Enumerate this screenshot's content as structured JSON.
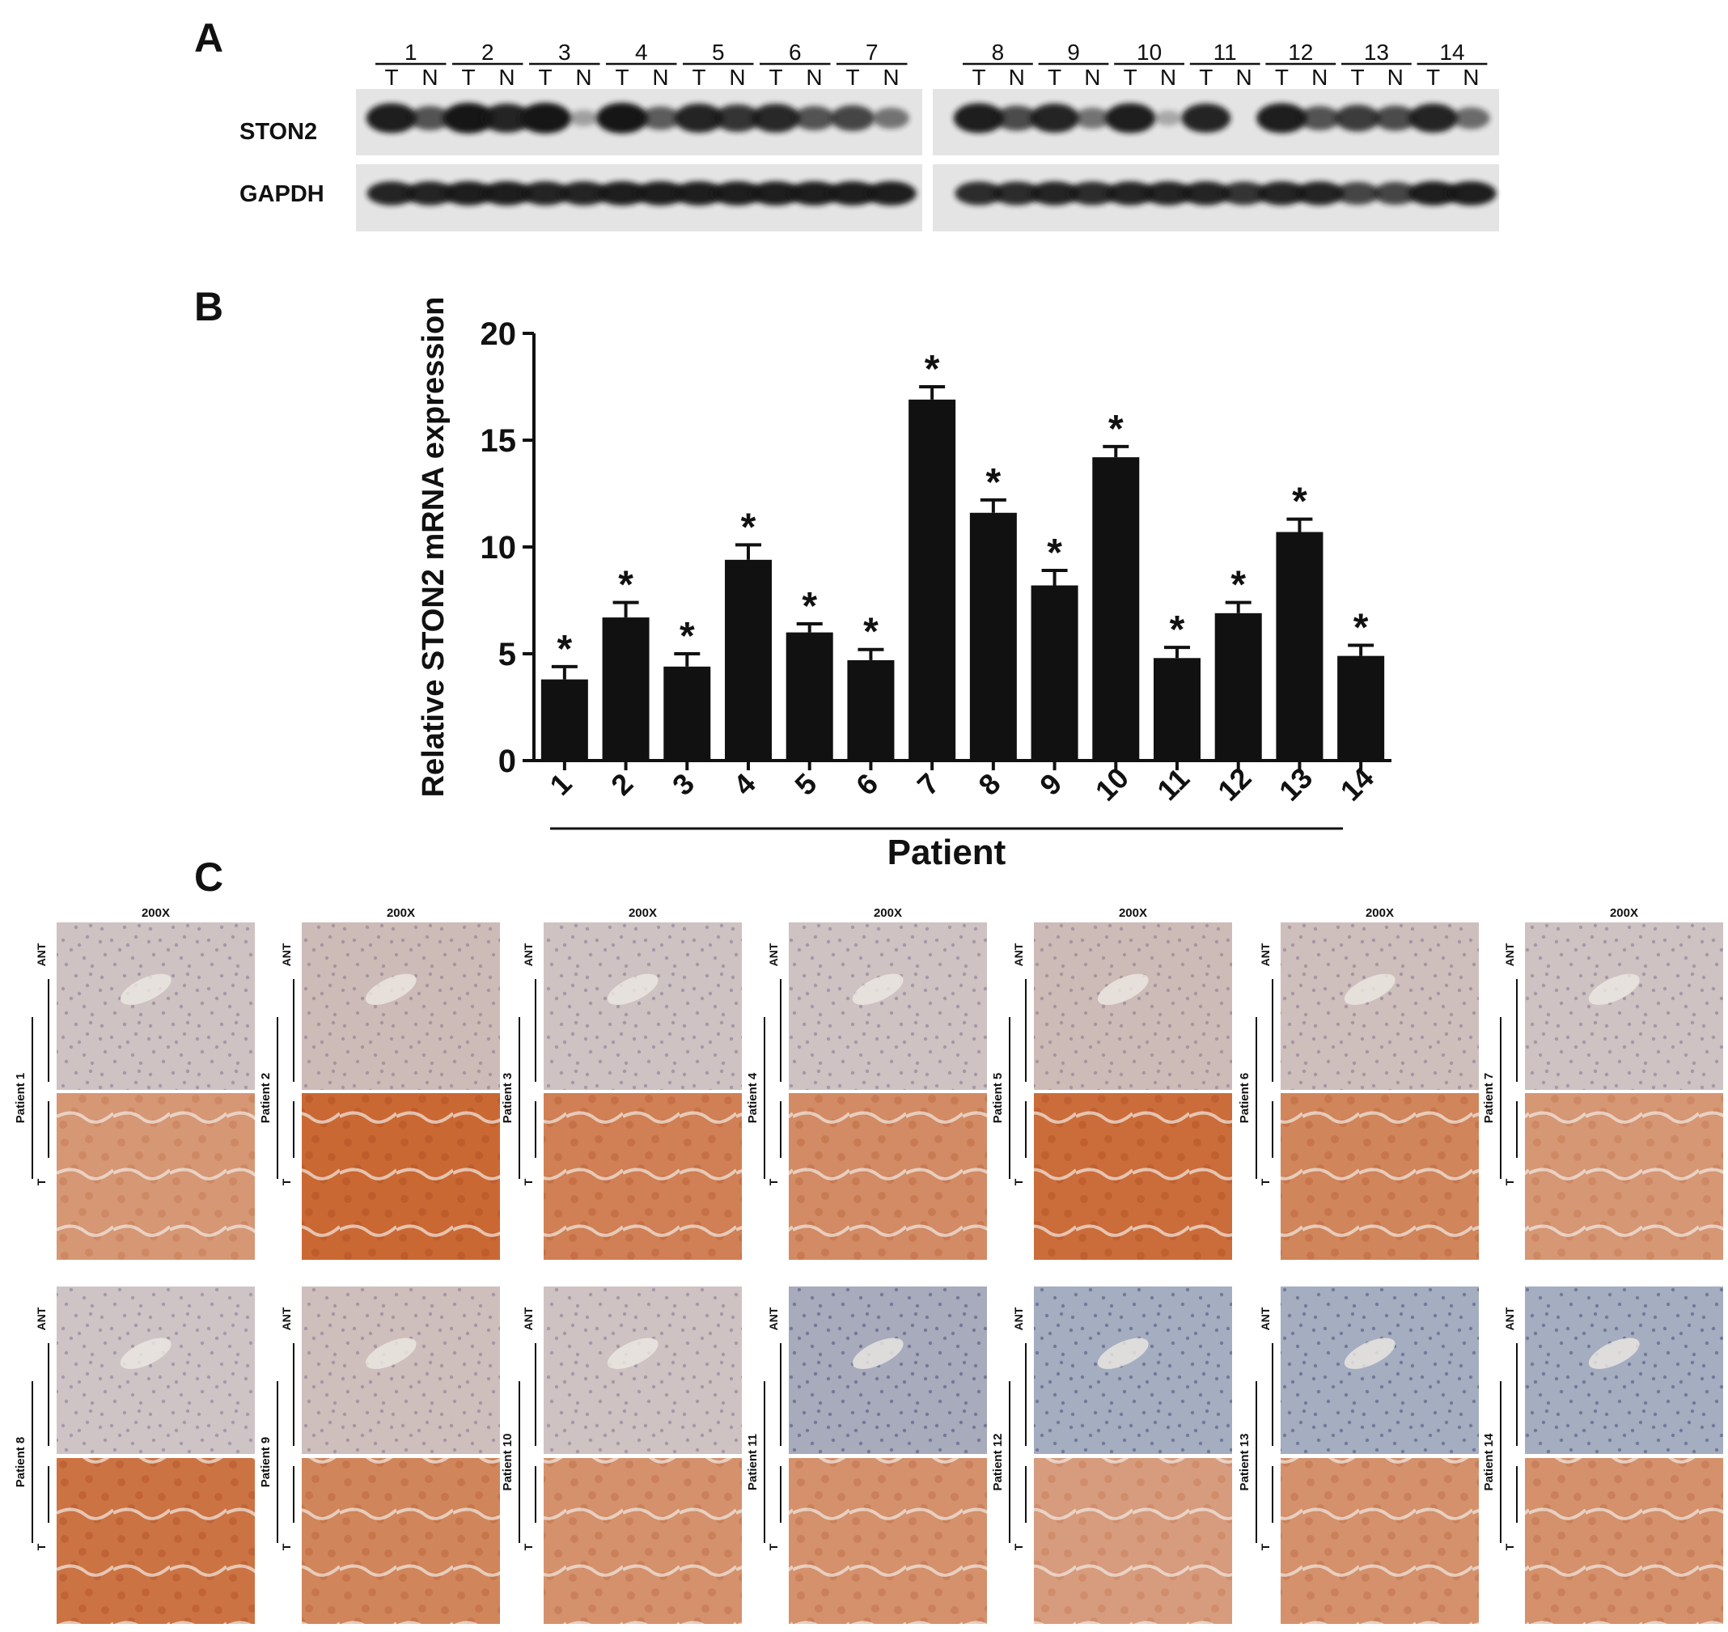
{
  "figure": {
    "panel_a": {
      "letter": "A",
      "lane_pair_labels": [
        "T",
        "N"
      ],
      "rows": [
        {
          "label": "STON2"
        },
        {
          "label": "GAPDH"
        }
      ],
      "patients": [
        "1",
        "2",
        "3",
        "4",
        "5",
        "6",
        "7",
        "8",
        "9",
        "10",
        "11",
        "12",
        "13",
        "14"
      ],
      "ston2_T": [
        0.95,
        1.0,
        1.0,
        1.0,
        0.9,
        0.88,
        0.7,
        0.95,
        0.9,
        0.95,
        0.9,
        0.95,
        0.75,
        0.9
      ],
      "ston2_N": [
        0.6,
        0.9,
        0.1,
        0.55,
        0.8,
        0.6,
        0.4,
        0.65,
        0.4,
        0.05,
        0.0,
        0.6,
        0.65,
        0.45
      ],
      "gapdh_T": [
        0.9,
        0.95,
        0.9,
        0.95,
        0.95,
        0.95,
        0.95,
        0.85,
        0.9,
        0.9,
        0.9,
        0.9,
        0.7,
        0.95
      ],
      "gapdh_N": [
        0.9,
        0.95,
        0.9,
        0.95,
        0.95,
        0.95,
        0.95,
        0.85,
        0.85,
        0.9,
        0.8,
        0.9,
        0.7,
        0.95
      ],
      "colors": {
        "band": "#161616",
        "background": "#e4e4e4"
      }
    },
    "panel_b": {
      "letter": "B",
      "significance_marker": "*",
      "colors": {
        "bar": "#111111"
      }
    },
    "panel_c": {
      "letter": "C",
      "magnification": "200X",
      "top_label": "ANT",
      "bottom_label": "T",
      "patient_labels": [
        "Patient 1",
        "Patient 2",
        "Patient 3",
        "Patient 4",
        "Patient 5",
        "Patient 6",
        "Patient 7",
        "Patient 8",
        "Patient 9",
        "Patient 10",
        "Patient 11",
        "Patient 12",
        "Patient 13",
        "Patient 14"
      ],
      "ant_stain_intensity": [
        0.1,
        0.2,
        0.1,
        0.1,
        0.2,
        0.15,
        0.1,
        0.05,
        0.15,
        0.1,
        0.1,
        0.05,
        0.05,
        0.05
      ],
      "t_stain_intensity": [
        0.55,
        0.95,
        0.75,
        0.65,
        0.9,
        0.7,
        0.55,
        0.85,
        0.7,
        0.6,
        0.6,
        0.5,
        0.6,
        0.6
      ],
      "colors": {
        "ant": "#c8c2c8",
        "ant_blue": "#9aa6c2",
        "stain": "#c8622a",
        "tissue_base": "#e6d6d0"
      }
    }
  },
  "chart_data": {
    "type": "bar",
    "categories": [
      "1",
      "2",
      "3",
      "4",
      "5",
      "6",
      "7",
      "8",
      "9",
      "10",
      "11",
      "12",
      "13",
      "14"
    ],
    "values": [
      3.8,
      6.7,
      4.4,
      9.4,
      6.0,
      4.7,
      16.9,
      11.6,
      8.2,
      14.2,
      4.8,
      6.9,
      10.7,
      4.9
    ],
    "errors": [
      0.6,
      0.7,
      0.6,
      0.7,
      0.4,
      0.5,
      0.6,
      0.6,
      0.7,
      0.5,
      0.5,
      0.5,
      0.6,
      0.5
    ],
    "ylabel": "Relative STON2 mRNA expression",
    "xlabel": "Patient",
    "ylim": [
      0,
      20
    ],
    "yticks": [
      0,
      5,
      10,
      15,
      20
    ],
    "significance_marker": "*",
    "grid": false
  }
}
